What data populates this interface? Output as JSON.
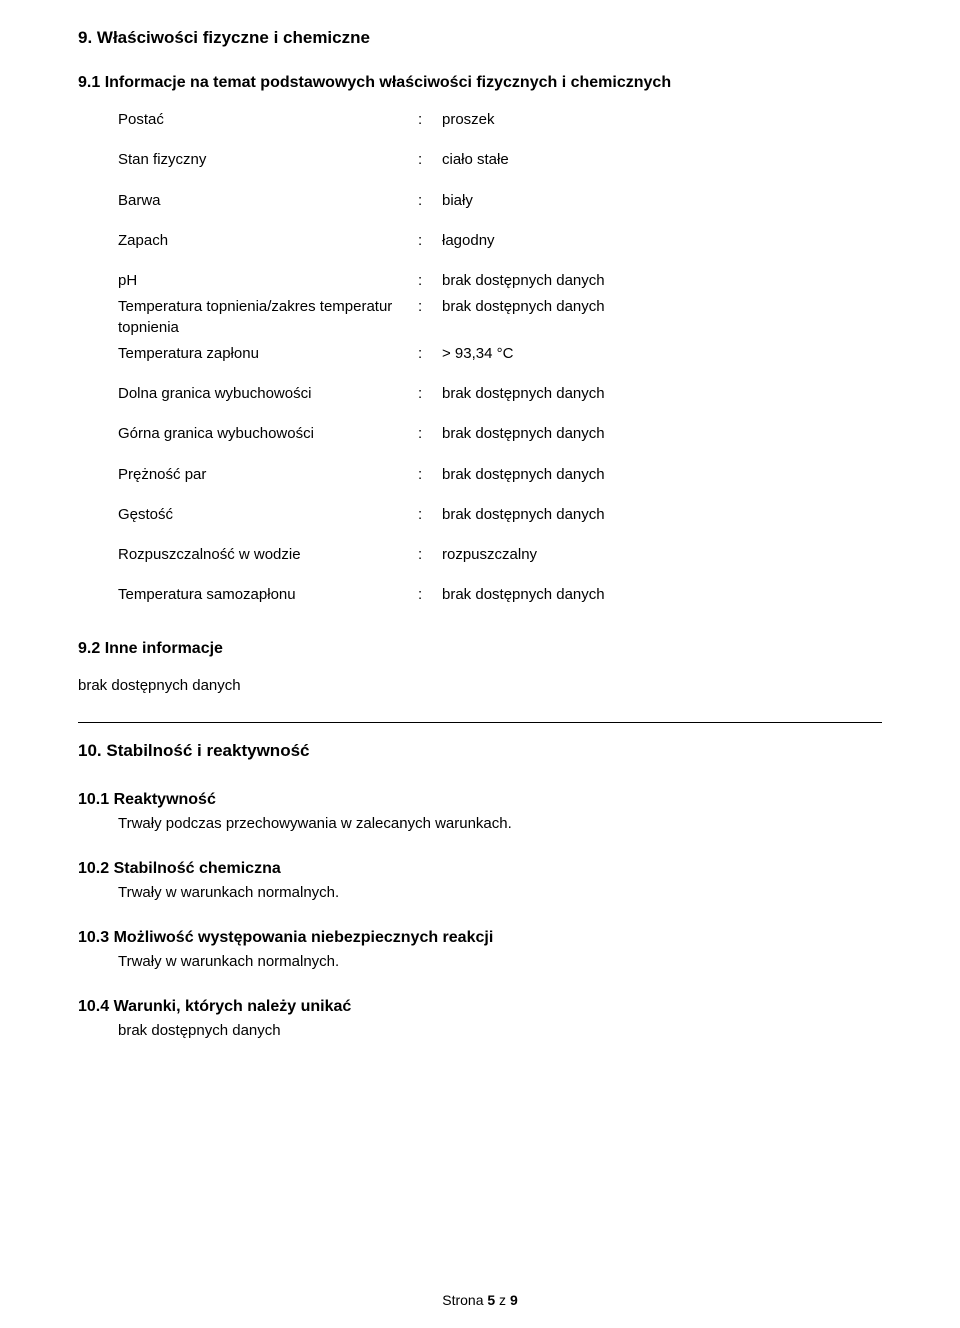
{
  "section9": {
    "heading": "9. Właściwości fizyczne i chemiczne",
    "sub1_heading": "9.1 Informacje na temat podstawowych właściwości fizycznych i chemicznych",
    "rows": [
      {
        "label": "Postać",
        "value": "proszek",
        "spaced": true
      },
      {
        "label": "Stan fizyczny",
        "value": "ciało stałe",
        "spaced": true
      },
      {
        "label": "Barwa",
        "value": "biały",
        "spaced": true
      },
      {
        "label": "Zapach",
        "value": "łagodny",
        "spaced": true
      },
      {
        "label": "pH",
        "value": "brak dostępnych danych",
        "spaced": false
      },
      {
        "label": "Temperatura topnienia/zakres temperatur topnienia",
        "value": "brak dostępnych danych",
        "spaced": false
      },
      {
        "label": "Temperatura zapłonu",
        "value": "> 93,34 °C",
        "spaced": true
      },
      {
        "label": "Dolna granica wybuchowości",
        "value": "brak dostępnych danych",
        "spaced": true
      },
      {
        "label": "Górna granica wybuchowości",
        "value": "brak dostępnych danych",
        "spaced": true
      },
      {
        "label": "Prężność par",
        "value": "brak dostępnych danych",
        "spaced": true
      },
      {
        "label": "Gęstość",
        "value": "brak dostępnych danych",
        "spaced": true
      },
      {
        "label": "Rozpuszczalność w wodzie",
        "value": "rozpuszczalny",
        "spaced": true
      },
      {
        "label": "Temperatura samozapłonu",
        "value": "brak dostępnych danych",
        "spaced": true
      }
    ],
    "sub2_heading": "9.2  Inne informacje",
    "sub2_body": "brak dostępnych danych"
  },
  "section10": {
    "heading": "10. Stabilność i reaktywność",
    "items": [
      {
        "title": "10.1   Reaktywność",
        "body": "Trwały podczas przechowywania w zalecanych warunkach."
      },
      {
        "title": "10.2  Stabilność chemiczna",
        "body": "Trwały w warunkach normalnych."
      },
      {
        "title": "10.3  Możliwość występowania niebezpiecznych reakcji",
        "body": "Trwały w warunkach normalnych."
      },
      {
        "title": "10.4  Warunki, których należy unikać",
        "body": "brak dostępnych danych"
      }
    ]
  },
  "footer": {
    "prefix": "Strona ",
    "page": "5",
    "mid": " z ",
    "total": "9"
  }
}
